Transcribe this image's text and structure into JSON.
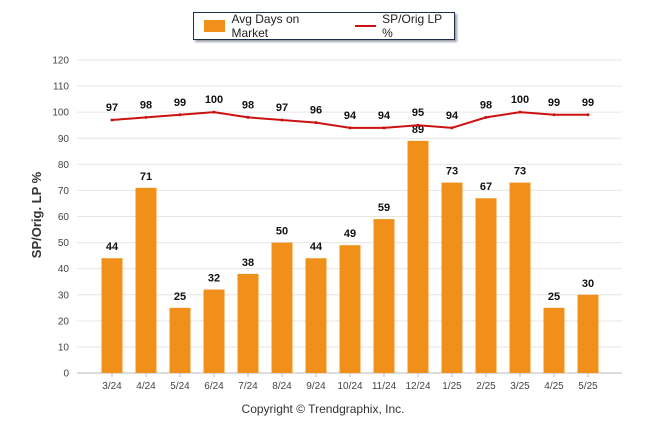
{
  "chart_data": {
    "type": "bar",
    "categories": [
      "3/24",
      "4/24",
      "5/24",
      "6/24",
      "7/24",
      "8/24",
      "9/24",
      "10/24",
      "11/24",
      "12/24",
      "1/25",
      "2/25",
      "3/25",
      "4/25",
      "5/25"
    ],
    "series": [
      {
        "name": "Avg Days on Market",
        "type": "bar",
        "color": "#f0901a",
        "values": [
          44,
          71,
          25,
          32,
          38,
          50,
          44,
          49,
          59,
          89,
          73,
          67,
          73,
          25,
          30
        ]
      },
      {
        "name": "SP/Orig LP %",
        "type": "line",
        "color": "#cc1111",
        "values": [
          97,
          98,
          99,
          100,
          98,
          97,
          96,
          94,
          94,
          95,
          94,
          98,
          100,
          99,
          99
        ]
      }
    ],
    "ylabel": "SP/Orig. LP %",
    "ylim": [
      0,
      120
    ],
    "yticks": [
      0,
      10,
      20,
      30,
      40,
      50,
      60,
      70,
      80,
      90,
      100,
      110,
      120
    ],
    "grid": true,
    "legend": "top-center"
  },
  "footer": "Copyright © Trendgraphix, Inc."
}
